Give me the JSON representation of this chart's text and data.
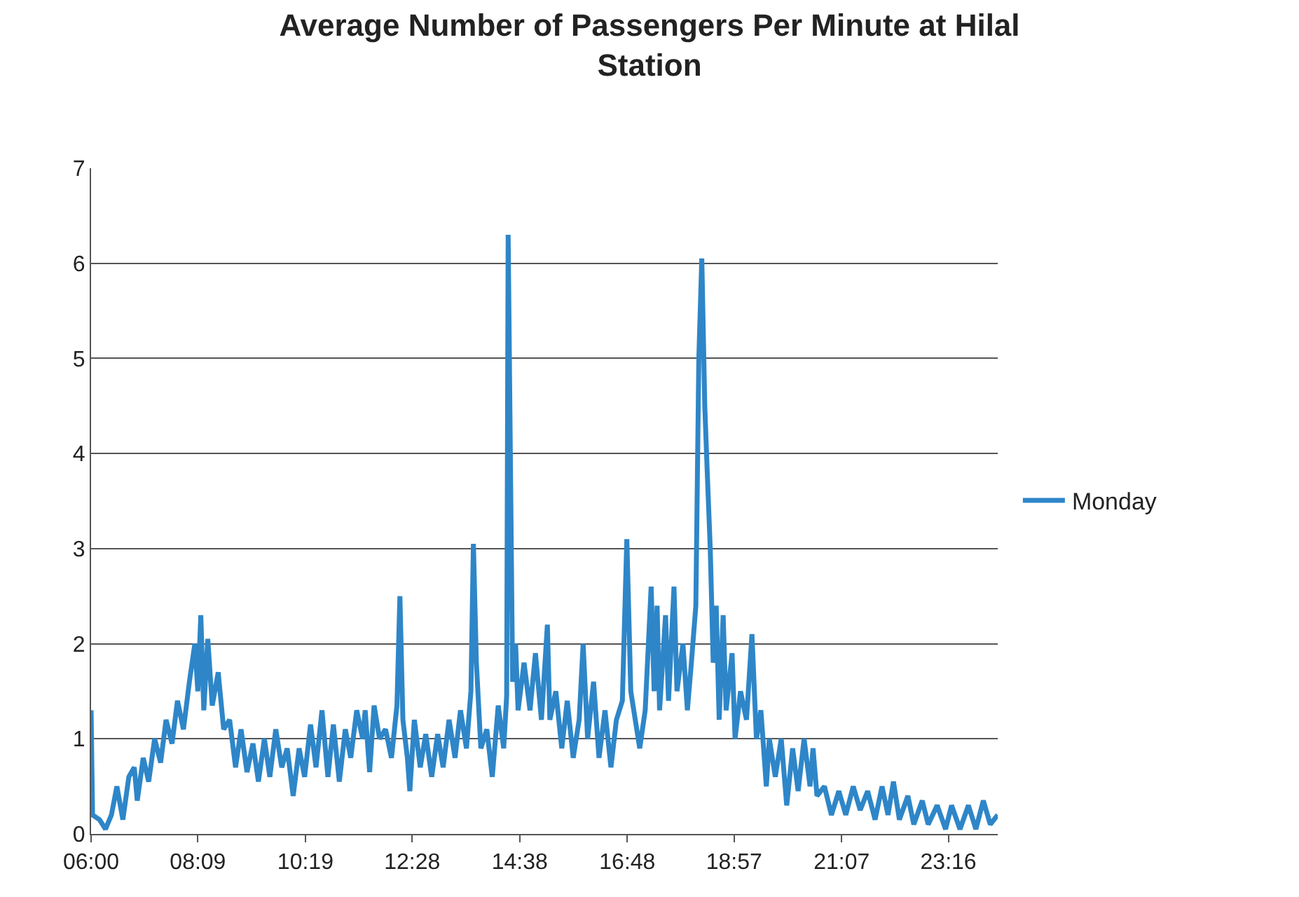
{
  "chart_data": {
    "type": "line",
    "title": "Average Number of Passengers Per Minute at Hilal Station",
    "xlim": [
      6,
      24.26
    ],
    "xticks": [
      {
        "value": 6,
        "label": "06:00"
      },
      {
        "value": 8.15,
        "label": "08:09"
      },
      {
        "value": 10.3167,
        "label": "10:19"
      },
      {
        "value": 12.4667,
        "label": "12:28"
      },
      {
        "value": 14.6333,
        "label": "14:38"
      },
      {
        "value": 16.8,
        "label": "16:48"
      },
      {
        "value": 18.95,
        "label": "18:57"
      },
      {
        "value": 21.1167,
        "label": "21:07"
      },
      {
        "value": 23.2667,
        "label": "23:16"
      }
    ],
    "ylim": [
      0,
      7
    ],
    "yticks": [
      0,
      1,
      2,
      3,
      4,
      5,
      6,
      7
    ],
    "grid": "y",
    "legend": "right",
    "marker": "none",
    "line_style": "solid",
    "series": [
      {
        "name": "Monday",
        "color": "#2e86c8",
        "x": [
          6.0,
          6.03,
          6.17,
          6.29,
          6.41,
          6.52,
          6.64,
          6.76,
          6.87,
          6.93,
          7.05,
          7.16,
          7.28,
          7.4,
          7.51,
          7.63,
          7.74,
          7.86,
          7.98,
          8.09,
          8.15,
          8.21,
          8.27,
          8.35,
          8.44,
          8.56,
          8.67,
          8.79,
          8.91,
          9.02,
          9.14,
          9.26,
          9.37,
          9.49,
          9.6,
          9.72,
          9.84,
          9.95,
          10.07,
          10.19,
          10.3,
          10.42,
          10.53,
          10.65,
          10.77,
          10.88,
          11.0,
          11.12,
          11.23,
          11.35,
          11.47,
          11.52,
          11.61,
          11.7,
          11.81,
          11.93,
          12.05,
          12.16,
          12.22,
          12.28,
          12.37,
          12.42,
          12.51,
          12.63,
          12.74,
          12.86,
          12.98,
          13.09,
          13.21,
          13.33,
          13.44,
          13.56,
          13.65,
          13.7,
          13.76,
          13.85,
          13.97,
          14.08,
          14.2,
          14.31,
          14.37,
          14.4,
          14.49,
          14.55,
          14.6,
          14.72,
          14.84,
          14.95,
          15.07,
          15.19,
          15.24,
          15.36,
          15.48,
          15.59,
          15.71,
          15.83,
          15.91,
          16.0,
          16.12,
          16.23,
          16.35,
          16.47,
          16.58,
          16.7,
          16.79,
          16.87,
          16.99,
          17.05,
          17.16,
          17.28,
          17.34,
          17.4,
          17.45,
          17.57,
          17.63,
          17.74,
          17.8,
          17.92,
          18.01,
          18.09,
          18.18,
          18.24,
          18.3,
          18.36,
          18.41,
          18.47,
          18.53,
          18.59,
          18.65,
          18.73,
          18.79,
          18.91,
          18.97,
          19.08,
          19.2,
          19.31,
          19.4,
          19.49,
          19.6,
          19.66,
          19.78,
          19.9,
          20.01,
          20.13,
          20.24,
          20.36,
          20.48,
          20.54,
          20.62,
          20.77,
          20.91,
          21.06,
          21.2,
          21.35,
          21.49,
          21.64,
          21.79,
          21.93,
          22.05,
          22.16,
          22.28,
          22.45,
          22.57,
          22.74,
          22.86,
          23.04,
          23.21,
          23.33,
          23.5,
          23.67,
          23.82,
          23.97,
          24.11,
          24.26
        ],
        "values": [
          1.3,
          0.2,
          0.15,
          0.05,
          0.2,
          0.5,
          0.15,
          0.6,
          0.7,
          0.35,
          0.8,
          0.55,
          1.0,
          0.75,
          1.2,
          0.95,
          1.4,
          1.1,
          1.6,
          2.0,
          1.5,
          2.3,
          1.3,
          2.05,
          1.35,
          1.7,
          1.1,
          1.2,
          0.7,
          1.1,
          0.65,
          0.95,
          0.55,
          1.0,
          0.6,
          1.1,
          0.7,
          0.9,
          0.4,
          0.9,
          0.6,
          1.15,
          0.7,
          1.3,
          0.6,
          1.15,
          0.55,
          1.1,
          0.8,
          1.3,
          1.0,
          1.3,
          0.65,
          1.35,
          1.0,
          1.1,
          0.8,
          1.35,
          2.5,
          1.2,
          0.8,
          0.45,
          1.2,
          0.7,
          1.05,
          0.6,
          1.05,
          0.7,
          1.2,
          0.8,
          1.3,
          0.9,
          1.5,
          3.05,
          1.8,
          0.9,
          1.1,
          0.6,
          1.35,
          0.9,
          1.45,
          6.3,
          1.6,
          2.0,
          1.3,
          1.8,
          1.3,
          1.9,
          1.2,
          2.2,
          1.2,
          1.5,
          0.9,
          1.4,
          0.8,
          1.2,
          2.0,
          1.0,
          1.6,
          0.8,
          1.3,
          0.7,
          1.2,
          1.4,
          3.1,
          1.5,
          1.1,
          0.9,
          1.3,
          2.6,
          1.5,
          2.4,
          1.3,
          2.3,
          1.4,
          2.6,
          1.5,
          2.0,
          1.3,
          1.8,
          2.4,
          5.0,
          6.05,
          4.5,
          3.8,
          3.0,
          1.8,
          2.4,
          1.2,
          2.3,
          1.3,
          1.9,
          1.0,
          1.5,
          1.2,
          2.1,
          1.0,
          1.3,
          0.5,
          1.0,
          0.6,
          1.0,
          0.3,
          0.9,
          0.45,
          1.0,
          0.5,
          0.9,
          0.4,
          0.5,
          0.2,
          0.45,
          0.2,
          0.5,
          0.25,
          0.45,
          0.15,
          0.5,
          0.2,
          0.55,
          0.15,
          0.4,
          0.1,
          0.35,
          0.1,
          0.3,
          0.05,
          0.3,
          0.05,
          0.3,
          0.05,
          0.35,
          0.1,
          0.2
        ]
      }
    ]
  }
}
